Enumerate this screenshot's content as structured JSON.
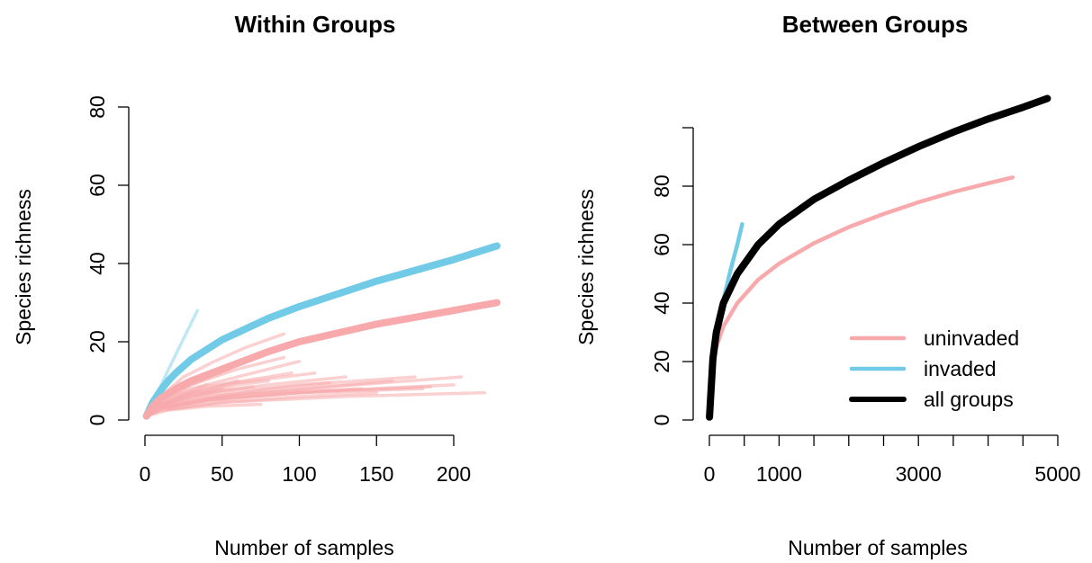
{
  "chart_data": [
    {
      "type": "line",
      "title": "Within Groups",
      "xlabel": "Number of samples",
      "ylabel": "Species richness",
      "xlim": [
        0,
        228
      ],
      "ylim": [
        0,
        80
      ],
      "xticks": [
        "0",
        "50",
        "100",
        "150",
        "200"
      ],
      "yticks": [
        "0",
        "20",
        "40",
        "60",
        "80"
      ],
      "colors": {
        "uninvaded": "#f8a9ab",
        "invaded": "#71cbe6"
      },
      "series": [
        {
          "group": "invaded",
          "x": [
            1,
            5,
            10,
            15,
            20,
            30,
            50,
            80,
            100,
            150,
            200,
            228
          ],
          "values": [
            1,
            4.5,
            7.5,
            10,
            12,
            15.5,
            20.5,
            26,
            29,
            35.5,
            41,
            44.5
          ]
        },
        {
          "group": "uninvaded",
          "x": [
            1,
            5,
            10,
            20,
            30,
            50,
            80,
            100,
            150,
            200,
            228
          ],
          "values": [
            1,
            3.5,
            5.5,
            8,
            10,
            13,
            17.5,
            20,
            24.5,
            28,
            30
          ]
        },
        {
          "group": "invaded",
          "x": [
            1,
            8,
            16,
            24,
            34
          ],
          "values": [
            1,
            7,
            13.5,
            20,
            28
          ]
        },
        {
          "group": "invaded",
          "x": [
            1,
            5,
            10,
            17
          ],
          "values": [
            1,
            4,
            7,
            10
          ]
        },
        {
          "group": "invaded",
          "x": [
            1,
            5,
            10,
            15
          ],
          "values": [
            1,
            3,
            5,
            6
          ]
        },
        {
          "group": "uninvaded",
          "x": [
            1,
            10,
            25,
            45,
            65,
            90
          ],
          "values": [
            1,
            6,
            11,
            15,
            18.5,
            22
          ]
        },
        {
          "group": "uninvaded",
          "x": [
            1,
            10,
            30,
            60,
            90
          ],
          "values": [
            1,
            5,
            9,
            13,
            16
          ]
        },
        {
          "group": "uninvaded",
          "x": [
            1,
            10,
            30,
            60,
            100
          ],
          "values": [
            1,
            5,
            8,
            11,
            15
          ]
        },
        {
          "group": "uninvaded",
          "x": [
            1,
            10,
            30,
            60,
            110
          ],
          "values": [
            1,
            4,
            7,
            9.5,
            12
          ]
        },
        {
          "group": "uninvaded",
          "x": [
            1,
            10,
            40,
            80,
            130
          ],
          "values": [
            1,
            4,
            7,
            9,
            11
          ]
        },
        {
          "group": "uninvaded",
          "x": [
            1,
            10,
            40,
            100,
            160
          ],
          "values": [
            1,
            3.5,
            6,
            8,
            10
          ]
        },
        {
          "group": "uninvaded",
          "x": [
            1,
            10,
            50,
            120,
            205
          ],
          "values": [
            1,
            3,
            6,
            8.5,
            11
          ]
        },
        {
          "group": "uninvaded",
          "x": [
            1,
            10,
            50,
            120,
            200
          ],
          "values": [
            1,
            3,
            5.5,
            7.5,
            9
          ]
        },
        {
          "group": "uninvaded",
          "x": [
            1,
            10,
            50,
            130,
            220
          ],
          "values": [
            1,
            2.5,
            4.5,
            6,
            7
          ]
        },
        {
          "group": "uninvaded",
          "x": [
            1,
            10,
            40,
            100,
            185
          ],
          "values": [
            1,
            3,
            5,
            7,
            8.5
          ]
        },
        {
          "group": "uninvaded",
          "x": [
            1,
            10,
            50,
            100,
            150
          ],
          "values": [
            1,
            2.5,
            4.5,
            6,
            7
          ]
        },
        {
          "group": "uninvaded",
          "x": [
            1,
            10,
            40,
            80,
            120
          ],
          "values": [
            1,
            3,
            5.5,
            8,
            9.5
          ]
        },
        {
          "group": "uninvaded",
          "x": [
            1,
            10,
            30,
            60,
            80
          ],
          "values": [
            1,
            3.5,
            6.5,
            9,
            10
          ]
        },
        {
          "group": "uninvaded",
          "x": [
            1,
            10,
            30,
            60
          ],
          "values": [
            1,
            4,
            7,
            10
          ]
        },
        {
          "group": "uninvaded",
          "x": [
            1,
            10,
            25,
            50
          ],
          "values": [
            1,
            3,
            6,
            8
          ]
        },
        {
          "group": "uninvaded",
          "x": [
            1,
            10,
            30,
            50,
            70
          ],
          "values": [
            1,
            3.5,
            6,
            7.5,
            8.5
          ]
        },
        {
          "group": "uninvaded",
          "x": [
            1,
            15,
            40,
            75
          ],
          "values": [
            1,
            2.5,
            3.5,
            4
          ]
        },
        {
          "group": "uninvaded",
          "x": [
            1,
            10,
            25,
            40
          ],
          "values": [
            1,
            4,
            7,
            9
          ]
        },
        {
          "group": "uninvaded",
          "x": [
            1,
            8,
            20,
            30
          ],
          "values": [
            1,
            4.5,
            8,
            10
          ]
        },
        {
          "group": "uninvaded",
          "x": [
            1,
            10,
            30,
            55
          ],
          "values": [
            1,
            5,
            9,
            13
          ]
        },
        {
          "group": "uninvaded",
          "x": [
            1,
            10,
            40,
            95
          ],
          "values": [
            1,
            4.5,
            8.5,
            12
          ]
        },
        {
          "group": "uninvaded",
          "x": [
            1,
            10,
            40,
            80,
            140
          ],
          "values": [
            1,
            3,
            5.5,
            7,
            8
          ]
        },
        {
          "group": "uninvaded",
          "x": [
            1,
            10,
            40,
            100,
            175
          ],
          "values": [
            1,
            3.5,
            6.5,
            9,
            11
          ]
        },
        {
          "group": "uninvaded",
          "x": [
            1,
            10,
            40,
            100,
            180
          ],
          "values": [
            1,
            3,
            5,
            7,
            8
          ]
        }
      ]
    },
    {
      "type": "line",
      "title": "Between Groups",
      "xlabel": "Number of samples",
      "ylabel": "Species richness",
      "xlim": [
        0,
        4850
      ],
      "ylim": [
        0,
        110
      ],
      "xticks": [
        "0",
        "1000",
        "3000",
        "5000"
      ],
      "yticks": [
        "0",
        "20",
        "40",
        "60",
        "80"
      ],
      "legend": {
        "position": "bottom-right",
        "entries": [
          "uninvaded",
          "invaded",
          "all groups"
        ]
      },
      "colors": {
        "uninvaded": "#f8a9ab",
        "invaded": "#71cbe6",
        "all groups": "#000000"
      },
      "series": [
        {
          "name": "uninvaded",
          "x": [
            1,
            50,
            100,
            200,
            400,
            700,
            1000,
            1500,
            2000,
            2500,
            3000,
            3500,
            4000,
            4350
          ],
          "values": [
            1,
            18,
            25,
            32,
            40,
            48,
            53.5,
            60.5,
            66,
            70.5,
            74.5,
            78,
            81,
            83
          ]
        },
        {
          "name": "invaded",
          "x": [
            1,
            50,
            100,
            200,
            300,
            400,
            470
          ],
          "values": [
            1,
            20,
            29,
            41,
            51,
            60,
            67
          ]
        },
        {
          "name": "all groups",
          "x": [
            1,
            50,
            100,
            200,
            400,
            700,
            1000,
            1500,
            2000,
            2500,
            3000,
            3500,
            4000,
            4500,
            4850
          ],
          "values": [
            1,
            21,
            30,
            40,
            50,
            60,
            67,
            75.5,
            82,
            88,
            93.5,
            98.5,
            103,
            107,
            110
          ]
        }
      ]
    }
  ]
}
